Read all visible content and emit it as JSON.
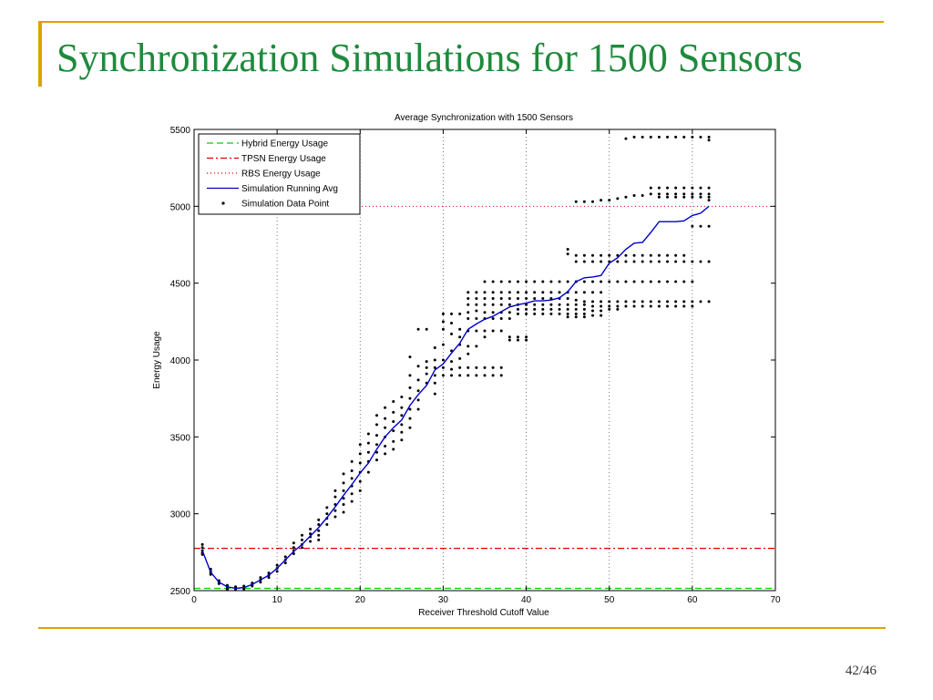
{
  "slide": {
    "title": "Synchronization Simulations for 1500 Sensors",
    "page": "42/46",
    "accent_color": "#dba400",
    "title_color": "#1f8a3c"
  },
  "chart_data": {
    "type": "line",
    "title": "Average Synchronization with 1500 Sensors",
    "xlabel": "Receiver Threshold Cutoff Value",
    "ylabel": "Energy Usage",
    "xlim": [
      0,
      70
    ],
    "ylim": [
      2500,
      5500
    ],
    "xticks": [
      0,
      10,
      20,
      30,
      40,
      50,
      60,
      70
    ],
    "yticks": [
      2500,
      3000,
      3500,
      4000,
      4500,
      5000,
      5500
    ],
    "grid": "dotted vertical at x ticks",
    "legend_placement": "top-left",
    "reference_lines": [
      {
        "name": "Hybrid Energy Usage",
        "y": 2515,
        "color": "#00d000",
        "style": "dashed"
      },
      {
        "name": "TPSN Energy Usage",
        "y": 2775,
        "color": "#e00000",
        "style": "dashdot"
      },
      {
        "name": "RBS Energy Usage",
        "y": 5000,
        "color": "#e00000",
        "style": "dotted"
      }
    ],
    "series": [
      {
        "name": "Simulation Running Avg",
        "color": "#0000cc",
        "x": [
          1,
          2,
          3,
          4,
          5,
          6,
          7,
          8,
          9,
          10,
          11,
          12,
          13,
          14,
          15,
          16,
          17,
          18,
          19,
          20,
          21,
          22,
          23,
          24,
          25,
          26,
          27,
          28,
          29,
          30,
          31,
          32,
          33,
          34,
          35,
          36,
          37,
          38,
          39,
          40,
          41,
          42,
          43,
          44,
          45,
          46,
          47,
          48,
          49,
          50,
          51,
          52,
          53,
          54,
          55,
          56,
          57,
          58,
          59,
          60,
          61,
          62
        ],
        "y": [
          2760,
          2620,
          2555,
          2525,
          2515,
          2520,
          2540,
          2570,
          2600,
          2645,
          2700,
          2755,
          2800,
          2855,
          2910,
          2975,
          3045,
          3120,
          3190,
          3265,
          3330,
          3420,
          3500,
          3560,
          3610,
          3705,
          3775,
          3835,
          3935,
          3975,
          4045,
          4110,
          4200,
          4235,
          4265,
          4285,
          4315,
          4345,
          4360,
          4370,
          4385,
          4385,
          4390,
          4405,
          4445,
          4510,
          4535,
          4540,
          4550,
          4630,
          4665,
          4720,
          4760,
          4765,
          4830,
          4900,
          4900,
          4900,
          4905,
          4940,
          4955,
          5000
        ]
      }
    ],
    "scatter": {
      "name": "Simulation Data Point",
      "color": "#000000",
      "columns": [
        {
          "x": 1,
          "y": [
            2800,
            2780,
            2760,
            2745,
            2735
          ]
        },
        {
          "x": 2,
          "y": [
            2640,
            2625,
            2615,
            2605
          ]
        },
        {
          "x": 3,
          "y": [
            2565,
            2555,
            2545
          ]
        },
        {
          "x": 4,
          "y": [
            2535,
            2525,
            2515,
            2505
          ]
        },
        {
          "x": 5,
          "y": [
            2525,
            2515,
            2505
          ]
        },
        {
          "x": 6,
          "y": [
            2530,
            2520,
            2510
          ]
        },
        {
          "x": 7,
          "y": [
            2550,
            2540,
            2530
          ]
        },
        {
          "x": 8,
          "y": [
            2585,
            2570,
            2555
          ]
        },
        {
          "x": 9,
          "y": [
            2615,
            2600,
            2585
          ]
        },
        {
          "x": 10,
          "y": [
            2665,
            2645,
            2625
          ]
        },
        {
          "x": 11,
          "y": [
            2720,
            2700,
            2680
          ]
        },
        {
          "x": 12,
          "y": [
            2810,
            2780,
            2760,
            2740
          ]
        },
        {
          "x": 13,
          "y": [
            2860,
            2830,
            2800,
            2780
          ]
        },
        {
          "x": 14,
          "y": [
            2900,
            2870,
            2850,
            2820
          ]
        },
        {
          "x": 15,
          "y": [
            2960,
            2930,
            2890,
            2860,
            2830
          ]
        },
        {
          "x": 16,
          "y": [
            3040,
            3000,
            2970,
            2930
          ]
        },
        {
          "x": 17,
          "y": [
            3150,
            3110,
            3060,
            3020,
            2980
          ]
        },
        {
          "x": 18,
          "y": [
            3260,
            3200,
            3150,
            3100,
            3060,
            3010
          ]
        },
        {
          "x": 19,
          "y": [
            3340,
            3280,
            3230,
            3180,
            3130,
            3080
          ]
        },
        {
          "x": 20,
          "y": [
            3450,
            3390,
            3330,
            3270,
            3210,
            3150
          ]
        },
        {
          "x": 21,
          "y": [
            3520,
            3460,
            3400,
            3340,
            3270
          ]
        },
        {
          "x": 22,
          "y": [
            3640,
            3580,
            3510,
            3450,
            3400,
            3350
          ]
        },
        {
          "x": 23,
          "y": [
            3690,
            3620,
            3560,
            3500,
            3440,
            3390
          ]
        },
        {
          "x": 24,
          "y": [
            3730,
            3660,
            3600,
            3540,
            3470,
            3420
          ]
        },
        {
          "x": 25,
          "y": [
            3760,
            3690,
            3640,
            3580,
            3530,
            3480
          ]
        },
        {
          "x": 26,
          "y": [
            4020,
            3900,
            3820,
            3750,
            3680,
            3620,
            3560
          ]
        },
        {
          "x": 27,
          "y": [
            4200,
            3960,
            3870,
            3800,
            3740,
            3680
          ]
        },
        {
          "x": 28,
          "y": [
            4200,
            3990,
            3950,
            3910,
            3850
          ]
        },
        {
          "x": 29,
          "y": [
            4080,
            4000,
            3950,
            3900,
            3850,
            3780
          ]
        },
        {
          "x": 30,
          "y": [
            4300,
            4250,
            4200,
            4100,
            4000,
            3950,
            3900
          ]
        },
        {
          "x": 31,
          "y": [
            4300,
            4240,
            4170,
            4060,
            3990,
            3940,
            3900
          ]
        },
        {
          "x": 32,
          "y": [
            4300,
            4200,
            4150,
            4100,
            4010,
            3950,
            3900
          ]
        },
        {
          "x": 33,
          "y": [
            4440,
            4400,
            4360,
            4310,
            4270,
            4190,
            4090,
            4040,
            3950,
            3900
          ]
        },
        {
          "x": 34,
          "y": [
            4440,
            4400,
            4360,
            4320,
            4270,
            4190,
            4090,
            3950,
            3900
          ]
        },
        {
          "x": 35,
          "y": [
            4510,
            4440,
            4400,
            4360,
            4310,
            4270,
            4190,
            4150,
            3950,
            3900
          ]
        },
        {
          "x": 36,
          "y": [
            4510,
            4440,
            4400,
            4360,
            4310,
            4270,
            4190,
            3950,
            3900
          ]
        },
        {
          "x": 37,
          "y": [
            4510,
            4440,
            4400,
            4360,
            4310,
            4270,
            4190,
            3950,
            3900
          ]
        },
        {
          "x": 38,
          "y": [
            4510,
            4440,
            4400,
            4360,
            4310,
            4270,
            4150,
            4130
          ]
        },
        {
          "x": 39,
          "y": [
            4510,
            4440,
            4400,
            4360,
            4330,
            4300,
            4150,
            4130
          ]
        },
        {
          "x": 40,
          "y": [
            4510,
            4440,
            4400,
            4360,
            4330,
            4300,
            4150,
            4130
          ]
        },
        {
          "x": 41,
          "y": [
            4510,
            4440,
            4400,
            4360,
            4330,
            4300
          ]
        },
        {
          "x": 42,
          "y": [
            4510,
            4440,
            4400,
            4360,
            4330,
            4300
          ]
        },
        {
          "x": 43,
          "y": [
            4510,
            4440,
            4400,
            4360,
            4330,
            4300
          ]
        },
        {
          "x": 44,
          "y": [
            4510,
            4440,
            4400,
            4360,
            4330,
            4300
          ]
        },
        {
          "x": 45,
          "y": [
            4720,
            4690,
            4510,
            4440,
            4400,
            4360,
            4330,
            4300,
            4280
          ]
        },
        {
          "x": 46,
          "y": [
            5030,
            4680,
            4640,
            4510,
            4440,
            4390,
            4360,
            4330,
            4300,
            4280
          ]
        },
        {
          "x": 47,
          "y": [
            5030,
            4680,
            4640,
            4510,
            4440,
            4380,
            4360,
            4330,
            4300,
            4280
          ]
        },
        {
          "x": 48,
          "y": [
            5030,
            4680,
            4640,
            4510,
            4440,
            4380,
            4350,
            4320,
            4290
          ]
        },
        {
          "x": 49,
          "y": [
            5040,
            4680,
            4640,
            4510,
            4440,
            4380,
            4350,
            4320,
            4290
          ]
        },
        {
          "x": 50,
          "y": [
            5040,
            4680,
            4640,
            4510,
            4380,
            4350,
            4330
          ]
        },
        {
          "x": 51,
          "y": [
            5050,
            4680,
            4640,
            4510,
            4380,
            4350,
            4330
          ]
        },
        {
          "x": 52,
          "y": [
            5440,
            5060,
            4680,
            4640,
            4510,
            4380,
            4350
          ]
        },
        {
          "x": 53,
          "y": [
            5450,
            5070,
            4680,
            4640,
            4510,
            4380,
            4350
          ]
        },
        {
          "x": 54,
          "y": [
            5450,
            5070,
            4680,
            4640,
            4510,
            4380,
            4350
          ]
        },
        {
          "x": 55,
          "y": [
            5450,
            5120,
            5080,
            4680,
            4640,
            4510,
            4380,
            4350
          ]
        },
        {
          "x": 56,
          "y": [
            5450,
            5120,
            5080,
            5060,
            4680,
            4640,
            4510,
            4380,
            4350
          ]
        },
        {
          "x": 57,
          "y": [
            5450,
            5120,
            5080,
            5060,
            4680,
            4640,
            4510,
            4380,
            4350
          ]
        },
        {
          "x": 58,
          "y": [
            5450,
            5120,
            5080,
            5060,
            4680,
            4640,
            4510,
            4380,
            4350
          ]
        },
        {
          "x": 59,
          "y": [
            5450,
            5120,
            5080,
            5060,
            4680,
            4640,
            4510,
            4380,
            4350
          ]
        },
        {
          "x": 60,
          "y": [
            5450,
            5120,
            5080,
            5060,
            4870,
            4640,
            4510,
            4380,
            4350
          ]
        },
        {
          "x": 61,
          "y": [
            5450,
            5120,
            5080,
            5060,
            4870,
            4640,
            4380
          ]
        },
        {
          "x": 62,
          "y": [
            5450,
            5430,
            5120,
            5080,
            5060,
            5040,
            4870,
            4640,
            4380
          ]
        }
      ]
    },
    "legend": [
      {
        "label": "Hybrid Energy Usage",
        "color": "#00d000",
        "style": "dashed"
      },
      {
        "label": "TPSN Energy Usage",
        "color": "#e00000",
        "style": "dashdot"
      },
      {
        "label": "RBS Energy Usage",
        "color": "#e00000",
        "style": "dotted"
      },
      {
        "label": "Simulation Running Avg",
        "color": "#0000cc",
        "style": "solid"
      },
      {
        "label": "Simulation Data Point",
        "color": "#000000",
        "style": "point"
      }
    ]
  }
}
